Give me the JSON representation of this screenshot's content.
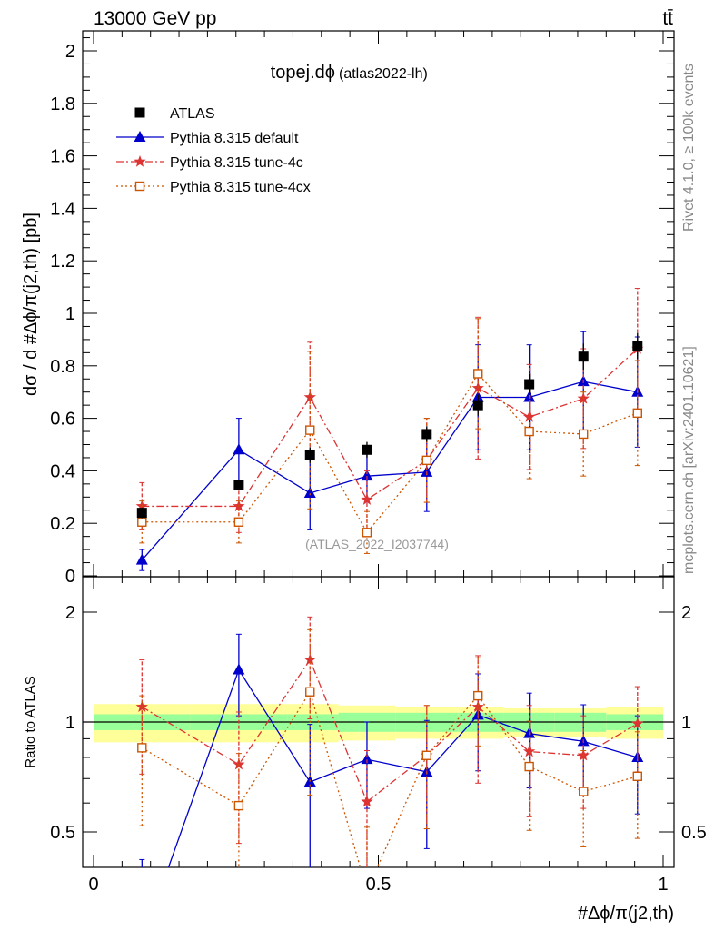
{
  "header": {
    "energy_label": "13000 GeV pp",
    "process_label": "tt̄"
  },
  "side_labels": {
    "rivet": "Rivet 4.1.0, ≥ 100k events",
    "mcplots": "mcplots.cern.ch [arXiv:2401.10621]"
  },
  "chart_data": {
    "type": "scatter",
    "title": "topej.dϕ",
    "subtitle": "(atlas2022-lh)",
    "watermark": "(ATLAS_2022_I2037744)",
    "ylabel": "dσ / d #Δϕ/π(j2,th) [pb]",
    "xlabel": "#Δϕ/π(j2,th)",
    "ratio_ylabel": "Ratio to ATLAS",
    "xlim": [
      0,
      1
    ],
    "ylim": [
      0,
      2.05
    ],
    "ratio_ylim": [
      0.4,
      2.3
    ],
    "x_ticks": [
      "0",
      "0.5",
      "1"
    ],
    "y_ticks": [
      "0",
      "0.2",
      "0.4",
      "0.6",
      "0.8",
      "1",
      "1.2",
      "1.4",
      "1.6",
      "1.8",
      "2"
    ],
    "ratio_ticks": [
      "0.5",
      "1",
      "2"
    ],
    "x": [
      0.085,
      0.255,
      0.38,
      0.48,
      0.585,
      0.675,
      0.765,
      0.86,
      0.955
    ],
    "bin_edges": [
      0,
      0.17,
      0.34,
      0.43,
      0.53,
      0.64,
      0.72,
      0.81,
      0.9,
      1.0
    ],
    "band_inner": [
      0.05,
      0.05,
      0.05,
      0.06,
      0.06,
      0.06,
      0.06,
      0.06,
      0.05
    ],
    "band_outer": [
      0.12,
      0.12,
      0.12,
      0.11,
      0.1,
      0.1,
      0.09,
      0.09,
      0.1
    ],
    "legend": [
      "ATLAS",
      "Pythia 8.315 default",
      "Pythia 8.315 tune-4c",
      "Pythia 8.315 tune-4cx"
    ],
    "series": [
      {
        "name": "ATLAS",
        "color": "#000000",
        "values": [
          0.24,
          0.345,
          0.46,
          0.48,
          0.54,
          0.65,
          0.73,
          0.835,
          0.875
        ],
        "errors": [
          0.02,
          0.02,
          0.03,
          0.03,
          0.03,
          0.04,
          0.04,
          0.05,
          0.05
        ]
      },
      {
        "name": "Pythia 8.315 default",
        "color": "#0000cc",
        "values": [
          0.06,
          0.48,
          0.315,
          0.38,
          0.395,
          0.68,
          0.68,
          0.74,
          0.7
        ],
        "errors": [
          0.04,
          0.12,
          0.14,
          0.1,
          0.15,
          0.2,
          0.2,
          0.19,
          0.21
        ],
        "ratio": [
          0.25,
          1.39,
          0.685,
          0.79,
          0.73,
          1.045,
          0.93,
          0.885,
          0.8
        ],
        "ratio_errors": [
          0.17,
          0.35,
          0.3,
          0.21,
          0.28,
          0.31,
          0.27,
          0.23,
          0.24
        ]
      },
      {
        "name": "Pythia 8.315 tune-4c",
        "color": "#dd3333",
        "values": [
          0.265,
          0.265,
          0.68,
          0.29,
          0.44,
          0.715,
          0.605,
          0.675,
          0.865
        ],
        "errors": [
          0.09,
          0.1,
          0.21,
          0.11,
          0.16,
          0.27,
          0.2,
          0.19,
          0.23
        ],
        "ratio": [
          1.1,
          0.765,
          1.48,
          0.605,
          0.81,
          1.1,
          0.83,
          0.81,
          0.99
        ],
        "ratio_errors": [
          0.38,
          0.3,
          0.46,
          0.23,
          0.3,
          0.42,
          0.28,
          0.23,
          0.26
        ]
      },
      {
        "name": "Pythia 8.315 tune-4cx",
        "color": "#cc5500",
        "values": [
          0.205,
          0.205,
          0.555,
          0.165,
          0.44,
          0.77,
          0.55,
          0.54,
          0.62
        ],
        "errors": [
          0.08,
          0.08,
          0.3,
          0.08,
          0.16,
          0.21,
          0.18,
          0.16,
          0.2
        ],
        "ratio": [
          0.85,
          0.59,
          1.21,
          0.345,
          0.81,
          1.18,
          0.755,
          0.645,
          0.71
        ],
        "ratio_errors": [
          0.33,
          0.23,
          0.58,
          0.17,
          0.3,
          0.32,
          0.25,
          0.19,
          0.23
        ]
      }
    ]
  }
}
